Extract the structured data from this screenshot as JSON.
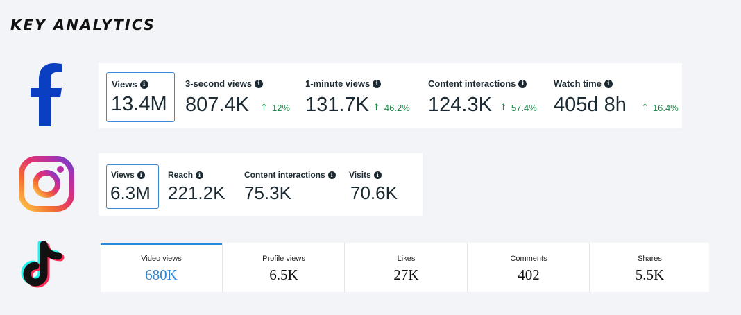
{
  "page": {
    "title": "KEY ANALYTICS"
  },
  "colors": {
    "facebook_blue": "#0a3fc2",
    "selected_border": "#3b8ad9",
    "trend_green": "#1e8a4c",
    "tiktok_active": "#2c87d6",
    "text_dark": "#1c2b33"
  },
  "facebook": {
    "icon": "facebook-logo-icon",
    "metrics": [
      {
        "label": "Views",
        "value": "13.4M",
        "trend": ""
      },
      {
        "label": "3-second views",
        "value": "807.4K",
        "trend": "12%"
      },
      {
        "label": "1-minute views",
        "value": "131.7K",
        "trend": "46.2%"
      },
      {
        "label": "Content interactions",
        "value": "124.3K",
        "trend": "57.4%"
      },
      {
        "label": "Watch time",
        "value": "405d 8h",
        "trend": "16.4%"
      }
    ]
  },
  "instagram": {
    "icon": "instagram-logo-icon",
    "metrics": [
      {
        "label": "Views",
        "value": "6.3M"
      },
      {
        "label": "Reach",
        "value": "221.2K"
      },
      {
        "label": "Content interactions",
        "value": "75.3K"
      },
      {
        "label": "Visits",
        "value": "70.6K"
      }
    ]
  },
  "tiktok": {
    "icon": "tiktok-logo-icon",
    "metrics": [
      {
        "label": "Video views",
        "value": "680K"
      },
      {
        "label": "Profile views",
        "value": "6.5K"
      },
      {
        "label": "Likes",
        "value": "27K"
      },
      {
        "label": "Comments",
        "value": "402"
      },
      {
        "label": "Shares",
        "value": "5.5K"
      }
    ]
  }
}
